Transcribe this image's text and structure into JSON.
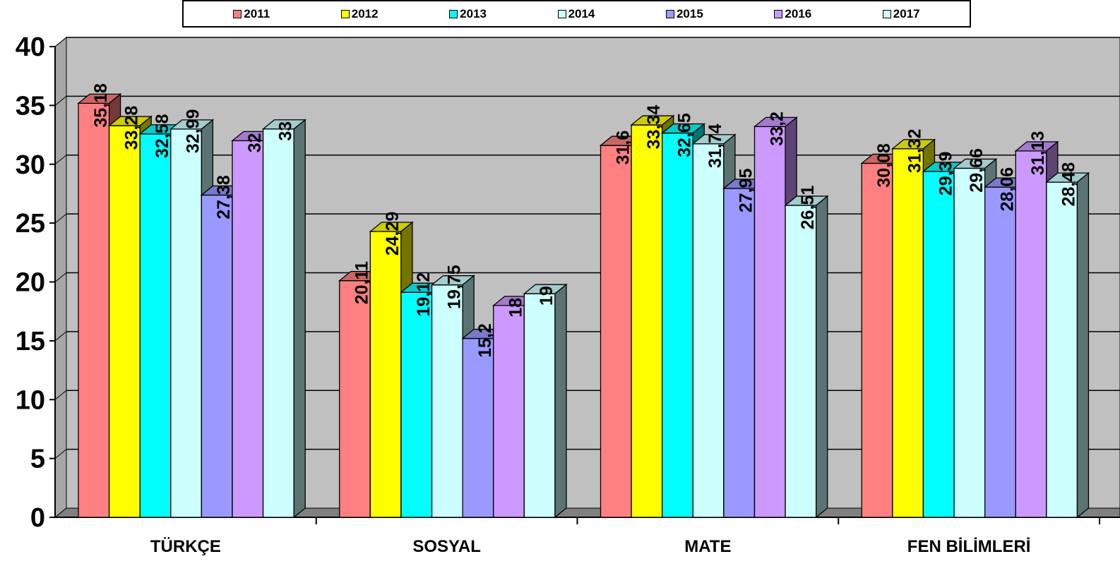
{
  "chart_data": {
    "type": "bar",
    "categories": [
      "TÜRKÇE",
      "SOSYAL",
      "MATE",
      "FEN BİLİMLERİ"
    ],
    "series": [
      {
        "name": "2011",
        "color": "#FF8080",
        "values": [
          35.18,
          20.11,
          31.6,
          30.08
        ],
        "labels": [
          "35,18",
          "20,11",
          "31,6",
          "30,08"
        ]
      },
      {
        "name": "2012",
        "color": "#FFFF00",
        "values": [
          33.28,
          24.29,
          33.34,
          31.32
        ],
        "labels": [
          "33,28",
          "24,29",
          "33,34",
          "31,32"
        ]
      },
      {
        "name": "2013",
        "color": "#00FFFF",
        "values": [
          32.58,
          19.12,
          32.65,
          29.39
        ],
        "labels": [
          "32,58",
          "19,12",
          "32,65",
          "29,39"
        ]
      },
      {
        "name": "2014",
        "color": "#CCFFFF",
        "values": [
          32.99,
          19.75,
          31.74,
          29.66
        ],
        "labels": [
          "32,99",
          "19,75",
          "31,74",
          "29,66"
        ]
      },
      {
        "name": "2015",
        "color": "#9999FF",
        "values": [
          27.38,
          15.2,
          27.95,
          28.06
        ],
        "labels": [
          "27,38",
          "15,2",
          "27,95",
          "28,06"
        ]
      },
      {
        "name": "2016",
        "color": "#CC99FF",
        "values": [
          32,
          18,
          33.2,
          31.13
        ],
        "labels": [
          "32",
          "18",
          "33,2",
          "31,13"
        ]
      },
      {
        "name": "2017",
        "color": "#CCFFFF",
        "values": [
          33,
          19,
          26.51,
          28.48
        ],
        "labels": [
          "33",
          "19",
          "26,51",
          "28,48"
        ]
      }
    ],
    "y_ticks": [
      "0",
      "5",
      "10",
      "15",
      "20",
      "25",
      "30",
      "35",
      "40"
    ],
    "ylim": [
      0,
      40
    ],
    "grid": true,
    "legend_position": "top",
    "plot_background": "#C0C0C0",
    "floor_color": "#808080"
  }
}
